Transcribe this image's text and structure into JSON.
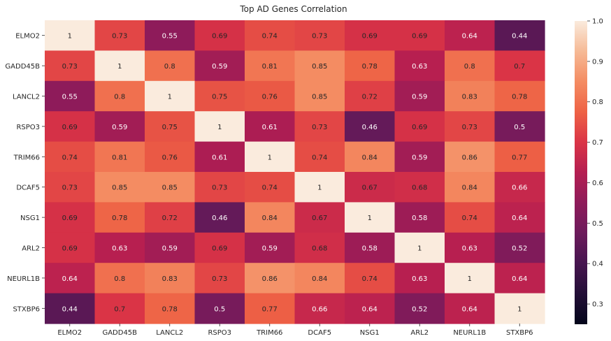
{
  "chart_data": {
    "type": "heatmap",
    "title": "Top AD Genes Correlation",
    "xlabel": "",
    "ylabel": "",
    "rows": [
      "ELMO2",
      "GADD45B",
      "LANCL2",
      "RSPO3",
      "TRIM66",
      "DCAF5",
      "NSG1",
      "ARL2",
      "NEURL1B",
      "STXBP6"
    ],
    "columns": [
      "ELMO2",
      "GADD45B",
      "LANCL2",
      "RSPO3",
      "TRIM66",
      "DCAF5",
      "NSG1",
      "ARL2",
      "NEURL1B",
      "STXBP6"
    ],
    "values": [
      [
        1,
        0.73,
        0.55,
        0.69,
        0.74,
        0.73,
        0.69,
        0.69,
        0.64,
        0.44
      ],
      [
        0.73,
        1,
        0.8,
        0.59,
        0.81,
        0.85,
        0.78,
        0.63,
        0.8,
        0.7
      ],
      [
        0.55,
        0.8,
        1,
        0.75,
        0.76,
        0.85,
        0.72,
        0.59,
        0.83,
        0.78
      ],
      [
        0.69,
        0.59,
        0.75,
        1,
        0.61,
        0.73,
        0.46,
        0.69,
        0.73,
        0.5
      ],
      [
        0.74,
        0.81,
        0.76,
        0.61,
        1,
        0.74,
        0.84,
        0.59,
        0.86,
        0.77
      ],
      [
        0.73,
        0.85,
        0.85,
        0.73,
        0.74,
        1,
        0.67,
        0.68,
        0.84,
        0.66
      ],
      [
        0.69,
        0.78,
        0.72,
        0.46,
        0.84,
        0.67,
        1,
        0.58,
        0.74,
        0.64
      ],
      [
        0.69,
        0.63,
        0.59,
        0.69,
        0.59,
        0.68,
        0.58,
        1,
        0.63,
        0.52
      ],
      [
        0.64,
        0.8,
        0.83,
        0.73,
        0.86,
        0.84,
        0.74,
        0.63,
        1,
        0.64
      ],
      [
        0.44,
        0.7,
        0.78,
        0.5,
        0.77,
        0.66,
        0.64,
        0.52,
        0.64,
        1
      ]
    ],
    "colorbar": {
      "range": [
        0.25,
        1.0
      ],
      "ticks": [
        0.3,
        0.4,
        0.5,
        0.6,
        0.7,
        0.8,
        0.9,
        1.0
      ],
      "tick_labels": [
        "0.3",
        "0.4",
        "0.5",
        "0.6",
        "0.7",
        "0.8",
        "0.9",
        "1.0"
      ],
      "colormap": "rocket"
    },
    "annotations": true
  }
}
